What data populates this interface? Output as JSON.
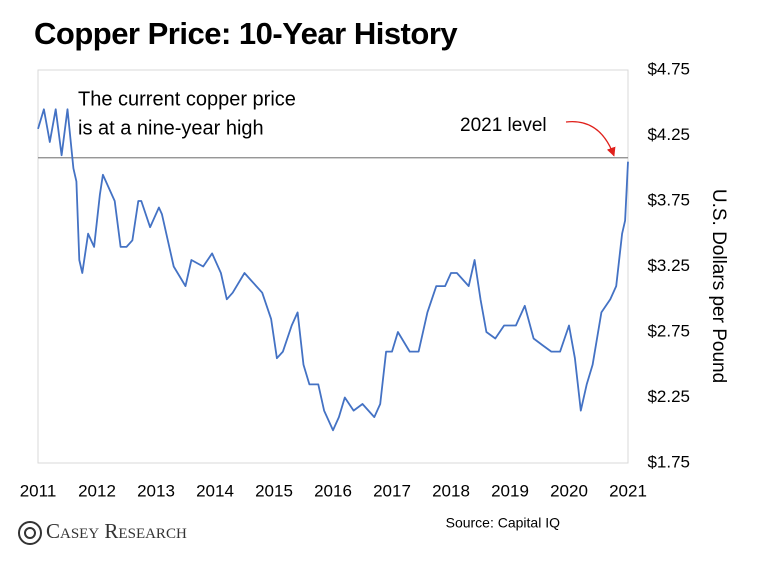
{
  "chart_data": {
    "type": "line",
    "title": "Copper Price: 10-Year History",
    "y_axis_label": "U.S. Dollars per Pound",
    "annotation": [
      "The current copper price",
      "is at a nine-year high"
    ],
    "reference_line": {
      "value": 4.08,
      "label": "2021 level",
      "color": "#888888"
    },
    "arrow_color": "#e0201b",
    "source": "Source: Capital IQ",
    "logo": "Casey Research",
    "x": [
      2011.0,
      2011.1,
      2011.2,
      2011.3,
      2011.4,
      2011.5,
      2011.6,
      2011.65,
      2011.7,
      2011.75,
      2011.85,
      2011.95,
      2012.05,
      2012.1,
      2012.2,
      2012.3,
      2012.4,
      2012.5,
      2012.6,
      2012.7,
      2012.75,
      2012.9,
      2013.05,
      2013.1,
      2013.2,
      2013.3,
      2013.5,
      2013.6,
      2013.8,
      2013.95,
      2014.1,
      2014.2,
      2014.3,
      2014.5,
      2014.6,
      2014.8,
      2014.95,
      2015.05,
      2015.15,
      2015.3,
      2015.4,
      2015.5,
      2015.6,
      2015.75,
      2015.85,
      2016.0,
      2016.1,
      2016.2,
      2016.35,
      2016.5,
      2016.7,
      2016.8,
      2016.9,
      2017.0,
      2017.1,
      2017.3,
      2017.45,
      2017.6,
      2017.75,
      2017.9,
      2018.0,
      2018.1,
      2018.3,
      2018.4,
      2018.5,
      2018.6,
      2018.75,
      2018.9,
      2019.1,
      2019.25,
      2019.4,
      2019.55,
      2019.7,
      2019.85,
      2020.0,
      2020.1,
      2020.2,
      2020.3,
      2020.4,
      2020.55,
      2020.7,
      2020.8,
      2020.9,
      2020.95,
      2021.0
    ],
    "series": [
      {
        "name": "Copper",
        "color": "#4472c4",
        "values": [
          4.3,
          4.45,
          4.2,
          4.45,
          4.1,
          4.45,
          4.0,
          3.9,
          3.3,
          3.2,
          3.5,
          3.4,
          3.8,
          3.95,
          3.85,
          3.75,
          3.4,
          3.4,
          3.45,
          3.75,
          3.75,
          3.55,
          3.7,
          3.65,
          3.45,
          3.25,
          3.1,
          3.3,
          3.25,
          3.35,
          3.2,
          3.0,
          3.05,
          3.2,
          3.15,
          3.05,
          2.85,
          2.55,
          2.6,
          2.8,
          2.9,
          2.5,
          2.35,
          2.35,
          2.15,
          2.0,
          2.1,
          2.25,
          2.15,
          2.2,
          2.1,
          2.2,
          2.6,
          2.6,
          2.75,
          2.6,
          2.6,
          2.9,
          3.1,
          3.1,
          3.2,
          3.2,
          3.1,
          3.3,
          3.0,
          2.75,
          2.7,
          2.8,
          2.8,
          2.95,
          2.7,
          2.65,
          2.6,
          2.6,
          2.8,
          2.55,
          2.15,
          2.35,
          2.5,
          2.9,
          3.0,
          3.1,
          3.5,
          3.6,
          4.05
        ]
      }
    ],
    "xlim": [
      2011,
      2021
    ],
    "xticks": [
      2011,
      2012,
      2013,
      2014,
      2015,
      2016,
      2017,
      2018,
      2019,
      2020,
      2021
    ],
    "ylim": [
      1.75,
      4.75
    ],
    "yticks": [
      {
        "value": 1.75,
        "label": "$1.75"
      },
      {
        "value": 2.25,
        "label": "$2.25"
      },
      {
        "value": 2.75,
        "label": "$2.75"
      },
      {
        "value": 3.25,
        "label": "$3.25"
      },
      {
        "value": 3.75,
        "label": "$3.75"
      },
      {
        "value": 4.25,
        "label": "$4.25"
      },
      {
        "value": 4.75,
        "label": "$4.75"
      }
    ],
    "grid": false
  }
}
